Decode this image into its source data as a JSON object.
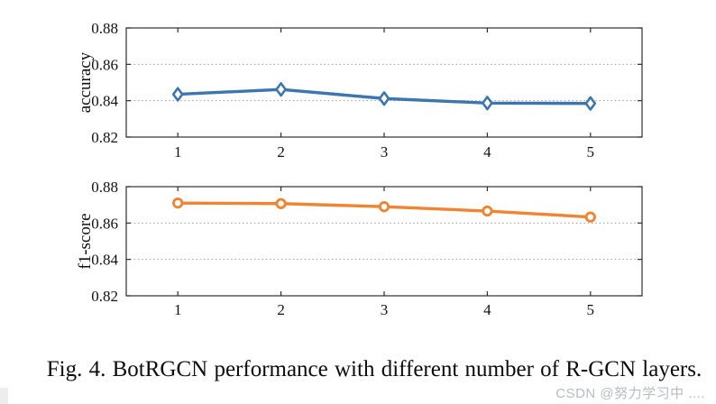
{
  "figure": {
    "caption": "Fig. 4.  BotRGCN performance with different number of R-GCN layers.",
    "watermark": "CSDN @努力学习中 ...."
  },
  "colors": {
    "accuracy_line": "#3b76af",
    "f1_line": "#ef8432",
    "grid": "#9c9c9c",
    "axis": "#2e2e2e",
    "tick_text": "#111111",
    "watermark_text": "#b7bbc2"
  },
  "chart_data": [
    {
      "type": "line",
      "title": "",
      "xlabel": "",
      "ylabel": "accuracy",
      "x": [
        1,
        2,
        3,
        4,
        5
      ],
      "xtick_labels": [
        "1",
        "2",
        "3",
        "4",
        "5"
      ],
      "xlim": [
        0.5,
        5.5
      ],
      "ylim": [
        0.82,
        0.88
      ],
      "yticks": [
        0.82,
        0.84,
        0.86,
        0.88
      ],
      "ytick_labels": [
        "0.82",
        "0.84",
        "0.86",
        "0.88"
      ],
      "series": [
        {
          "name": "accuracy",
          "values": [
            0.8435,
            0.8462,
            0.8412,
            0.8387,
            0.8385
          ]
        }
      ],
      "marker": "diamond",
      "color": "#3b76af",
      "grid": "horizontal-dotted",
      "legend": "none"
    },
    {
      "type": "line",
      "title": "",
      "xlabel": "",
      "ylabel": "f1-score",
      "x": [
        1,
        2,
        3,
        4,
        5
      ],
      "xtick_labels": [
        "1",
        "2",
        "3",
        "4",
        "5"
      ],
      "xlim": [
        0.5,
        5.5
      ],
      "ylim": [
        0.82,
        0.88
      ],
      "yticks": [
        0.82,
        0.84,
        0.86,
        0.88
      ],
      "ytick_labels": [
        "0.82",
        "0.84",
        "0.86",
        "0.88"
      ],
      "series": [
        {
          "name": "f1-score",
          "values": [
            0.871,
            0.8707,
            0.869,
            0.8666,
            0.8633
          ]
        }
      ],
      "marker": "circle",
      "color": "#ef8432",
      "grid": "horizontal-dotted",
      "legend": "none"
    }
  ]
}
